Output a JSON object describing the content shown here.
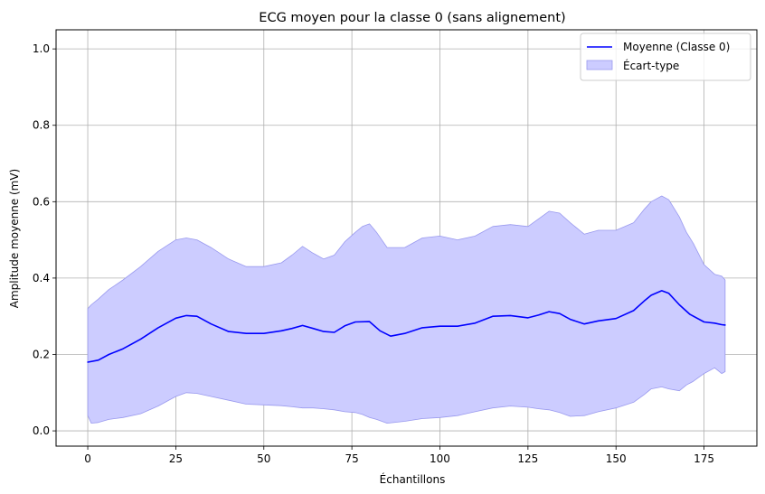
{
  "chart_data": {
    "type": "line",
    "title": "ECG moyen pour la classe 0 (sans alignement)",
    "xlabel": "Échantillons",
    "ylabel": "Amplitude moyenne (mV)",
    "xlim": [
      -9,
      190
    ],
    "ylim": [
      -0.04,
      1.05
    ],
    "xticks": [
      "0",
      "25",
      "50",
      "75",
      "100",
      "125",
      "150",
      "175"
    ],
    "yticks": [
      "0.0",
      "0.2",
      "0.4",
      "0.6",
      "0.8",
      "1.0"
    ],
    "grid": true,
    "legend_position": "top-right",
    "colors": {
      "mean": "#0000ff",
      "band": "#ccccff",
      "band_edge": "#9999ee",
      "grid": "#b0b0b0"
    },
    "series": [
      {
        "name": "Moyenne (Classe 0)",
        "kind": "line",
        "x": [
          0,
          3,
          6,
          10,
          15,
          20,
          25,
          28,
          31,
          35,
          40,
          45,
          50,
          55,
          58,
          61,
          64,
          67,
          70,
          73,
          76,
          80,
          83,
          86,
          90,
          95,
          100,
          105,
          110,
          115,
          120,
          125,
          128,
          131,
          134,
          137,
          141,
          145,
          150,
          155,
          158,
          160,
          163,
          165,
          168,
          171,
          175,
          178,
          180,
          181
        ],
        "y": [
          0.18,
          0.185,
          0.2,
          0.215,
          0.24,
          0.27,
          0.295,
          0.302,
          0.3,
          0.28,
          0.26,
          0.255,
          0.255,
          0.262,
          0.268,
          0.276,
          0.268,
          0.26,
          0.258,
          0.275,
          0.285,
          0.286,
          0.262,
          0.248,
          0.255,
          0.27,
          0.274,
          0.274,
          0.282,
          0.3,
          0.302,
          0.296,
          0.303,
          0.312,
          0.307,
          0.292,
          0.28,
          0.288,
          0.294,
          0.315,
          0.34,
          0.355,
          0.367,
          0.36,
          0.33,
          0.305,
          0.285,
          0.282,
          0.278,
          0.277
        ]
      },
      {
        "name": "Écart-type",
        "kind": "band",
        "x": [
          0,
          1,
          3,
          6,
          10,
          15,
          20,
          25,
          28,
          31,
          35,
          40,
          45,
          50,
          55,
          58,
          61,
          64,
          67,
          70,
          73,
          76,
          78,
          80,
          82,
          85,
          90,
          95,
          100,
          105,
          110,
          115,
          120,
          125,
          128,
          131,
          134,
          137,
          141,
          145,
          150,
          155,
          158,
          160,
          163,
          165,
          168,
          170,
          172,
          175,
          178,
          180,
          181
        ],
        "upper": [
          0.32,
          0.33,
          0.345,
          0.37,
          0.395,
          0.43,
          0.47,
          0.5,
          0.505,
          0.5,
          0.48,
          0.45,
          0.43,
          0.43,
          0.44,
          0.46,
          0.483,
          0.465,
          0.45,
          0.46,
          0.495,
          0.52,
          0.535,
          0.542,
          0.52,
          0.48,
          0.48,
          0.505,
          0.51,
          0.5,
          0.51,
          0.535,
          0.54,
          0.535,
          0.555,
          0.575,
          0.57,
          0.545,
          0.515,
          0.525,
          0.525,
          0.545,
          0.58,
          0.6,
          0.615,
          0.605,
          0.56,
          0.52,
          0.49,
          0.435,
          0.41,
          0.405,
          0.395
        ],
        "lower": [
          0.04,
          0.02,
          0.022,
          0.03,
          0.035,
          0.045,
          0.065,
          0.09,
          0.1,
          0.098,
          0.09,
          0.08,
          0.07,
          0.068,
          0.066,
          0.063,
          0.06,
          0.06,
          0.058,
          0.055,
          0.05,
          0.048,
          0.043,
          0.035,
          0.03,
          0.02,
          0.025,
          0.032,
          0.035,
          0.04,
          0.05,
          0.06,
          0.065,
          0.062,
          0.058,
          0.055,
          0.048,
          0.038,
          0.04,
          0.05,
          0.06,
          0.075,
          0.095,
          0.11,
          0.115,
          0.11,
          0.105,
          0.12,
          0.13,
          0.15,
          0.165,
          0.15,
          0.155
        ]
      }
    ]
  }
}
